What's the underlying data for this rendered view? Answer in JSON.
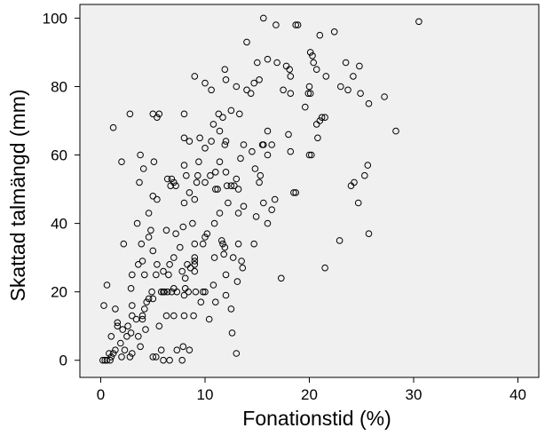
{
  "chart_data": {
    "type": "scatter",
    "title": "",
    "xlabel": "Fonationstid (%)",
    "ylabel": "Skattad talmängd (mm)",
    "xlim": [
      -2,
      42
    ],
    "ylim": [
      -5,
      104
    ],
    "xticks": [
      "0",
      "10",
      "20",
      "30",
      "40"
    ],
    "yticks": [
      "0",
      "20",
      "40",
      "60",
      "80",
      "100"
    ],
    "grid": false,
    "legend": "none",
    "plot_background": "#f0f0f0",
    "marker_color": "#000000",
    "marker": "hollow-circle",
    "series": [
      {
        "points": [
          [
            0.2,
            0
          ],
          [
            0.4,
            0
          ],
          [
            0.6,
            0
          ],
          [
            0.9,
            0
          ],
          [
            1.0,
            1
          ],
          [
            1.2,
            2
          ],
          [
            0.8,
            2
          ],
          [
            1.4,
            3
          ],
          [
            1.0,
            7
          ],
          [
            0.6,
            22
          ],
          [
            0.3,
            16
          ],
          [
            1.4,
            15
          ],
          [
            1.9,
            5
          ],
          [
            2.0,
            1
          ],
          [
            2.3,
            3
          ],
          [
            1.6,
            11
          ],
          [
            1.6,
            10
          ],
          [
            2.1,
            9
          ],
          [
            2.5,
            7
          ],
          [
            2.9,
            8
          ],
          [
            2.8,
            1
          ],
          [
            3.0,
            2
          ],
          [
            2.6,
            10
          ],
          [
            3.0,
            13
          ],
          [
            2.9,
            21
          ],
          [
            3.0,
            25
          ],
          [
            3.6,
            28
          ],
          [
            3.5,
            40
          ],
          [
            2.2,
            34
          ],
          [
            3.9,
            34
          ],
          [
            4.0,
            29
          ],
          [
            4.2,
            25
          ],
          [
            3.8,
            4
          ],
          [
            3.6,
            7
          ],
          [
            4.0,
            13
          ],
          [
            4.0,
            12
          ],
          [
            4.2,
            15
          ],
          [
            4.6,
            18
          ],
          [
            4.9,
            20
          ],
          [
            5.0,
            18
          ],
          [
            4.6,
            36
          ],
          [
            4.6,
            43
          ],
          [
            3.7,
            52
          ],
          [
            3.8,
            60
          ],
          [
            4.1,
            56
          ],
          [
            5.0,
            48
          ],
          [
            5.4,
            47
          ],
          [
            2.0,
            58
          ],
          [
            1.2,
            68
          ],
          [
            2.8,
            72
          ],
          [
            5.0,
            72
          ],
          [
            5.6,
            72
          ],
          [
            5.4,
            71
          ],
          [
            5.1,
            58
          ],
          [
            5.0,
            32
          ],
          [
            5.3,
            25
          ],
          [
            5.6,
            10
          ],
          [
            5.8,
            20
          ],
          [
            5.3,
            1
          ],
          [
            5.8,
            3
          ],
          [
            5.0,
            1
          ],
          [
            6.1,
            20
          ],
          [
            6.8,
            20
          ],
          [
            7.0,
            21
          ],
          [
            7.0,
            13
          ],
          [
            6.6,
            0
          ],
          [
            7.8,
            0
          ],
          [
            7.9,
            4
          ],
          [
            8.5,
            3
          ],
          [
            8.0,
            19
          ],
          [
            8.1,
            24
          ],
          [
            8.3,
            28
          ],
          [
            7.8,
            26
          ],
          [
            7.9,
            39
          ],
          [
            8.0,
            46
          ],
          [
            8.2,
            54
          ],
          [
            8.5,
            49
          ],
          [
            8.0,
            57
          ],
          [
            8.0,
            65
          ],
          [
            8.5,
            64
          ],
          [
            8.0,
            72
          ],
          [
            9.0,
            83
          ],
          [
            9.5,
            65
          ],
          [
            9.3,
            54
          ],
          [
            9.2,
            52
          ],
          [
            9.0,
            47
          ],
          [
            8.8,
            40
          ],
          [
            9.0,
            34
          ],
          [
            9.0,
            30
          ],
          [
            9.0,
            28
          ],
          [
            9.1,
            20
          ],
          [
            9.8,
            20
          ],
          [
            9.8,
            34
          ],
          [
            10.5,
            54
          ],
          [
            10.6,
            64
          ],
          [
            10.8,
            69
          ],
          [
            10.0,
            81
          ],
          [
            10.6,
            79
          ],
          [
            11.3,
            72
          ],
          [
            11.7,
            71
          ],
          [
            11.4,
            67
          ],
          [
            12.0,
            64
          ],
          [
            12.0,
            82
          ],
          [
            11.9,
            85
          ],
          [
            12.5,
            73
          ],
          [
            13.0,
            80
          ],
          [
            13.3,
            72
          ],
          [
            14.0,
            79
          ],
          [
            14.0,
            93
          ],
          [
            14.4,
            78
          ],
          [
            14.7,
            81
          ],
          [
            15.0,
            87
          ],
          [
            15.2,
            82
          ],
          [
            15.6,
            100
          ],
          [
            16.0,
            88
          ],
          [
            16.8,
            98
          ],
          [
            16.9,
            87
          ],
          [
            17.5,
            79
          ],
          [
            18.2,
            83
          ],
          [
            17.8,
            86
          ],
          [
            18.1,
            85
          ],
          [
            18.7,
            98
          ],
          [
            18.9,
            98
          ],
          [
            20.1,
            90
          ],
          [
            21.0,
            95
          ],
          [
            22.4,
            96
          ],
          [
            20.3,
            89
          ],
          [
            20.4,
            87
          ],
          [
            20.7,
            85
          ],
          [
            20.0,
            80
          ],
          [
            20.1,
            78
          ],
          [
            21.6,
            83
          ],
          [
            23.0,
            80
          ],
          [
            23.5,
            87
          ],
          [
            23.7,
            79
          ],
          [
            24.2,
            83
          ],
          [
            24.8,
            86
          ],
          [
            24.9,
            78
          ],
          [
            25.7,
            75
          ],
          [
            27.2,
            77
          ],
          [
            28.3,
            67
          ],
          [
            30.5,
            99
          ],
          [
            25.6,
            57
          ],
          [
            25.3,
            54
          ],
          [
            24.0,
            51
          ],
          [
            24.3,
            52
          ],
          [
            24.7,
            46
          ],
          [
            22.9,
            35
          ],
          [
            25.7,
            37
          ],
          [
            21.5,
            27
          ],
          [
            21.2,
            71
          ],
          [
            21.0,
            70
          ],
          [
            21.5,
            71
          ],
          [
            20.7,
            69
          ],
          [
            20.8,
            65
          ],
          [
            20.0,
            60
          ],
          [
            20.2,
            60
          ],
          [
            19.6,
            74
          ],
          [
            19.9,
            78
          ],
          [
            18.2,
            78
          ],
          [
            18.0,
            66
          ],
          [
            18.2,
            61
          ],
          [
            18.5,
            49
          ],
          [
            18.7,
            49
          ],
          [
            17.3,
            24
          ],
          [
            16.7,
            47
          ],
          [
            16.4,
            44
          ],
          [
            16.0,
            40
          ],
          [
            15.6,
            46
          ],
          [
            15.3,
            54
          ],
          [
            15.5,
            63
          ],
          [
            15.6,
            63
          ],
          [
            15.2,
            52
          ],
          [
            14.9,
            42
          ],
          [
            14.7,
            34
          ],
          [
            13.2,
            43
          ],
          [
            13.7,
            45
          ],
          [
            13.2,
            50
          ],
          [
            13.0,
            53
          ],
          [
            13.4,
            59
          ],
          [
            13.7,
            63
          ],
          [
            14.5,
            61
          ],
          [
            14.8,
            56
          ],
          [
            16.0,
            60
          ],
          [
            16.0,
            67
          ],
          [
            16.4,
            63
          ],
          [
            12.0,
            25
          ],
          [
            11.8,
            31
          ],
          [
            11.7,
            34
          ],
          [
            11.9,
            33
          ],
          [
            12.7,
            30
          ],
          [
            13.2,
            34
          ],
          [
            13.5,
            29
          ],
          [
            13.6,
            27
          ],
          [
            13.1,
            23
          ],
          [
            12.0,
            19
          ],
          [
            12.5,
            15
          ],
          [
            12.6,
            8
          ],
          [
            13.0,
            2
          ],
          [
            11.0,
            17
          ],
          [
            10.8,
            22
          ],
          [
            10.4,
            12
          ],
          [
            10.0,
            20
          ],
          [
            9.6,
            17
          ],
          [
            9.0,
            26
          ],
          [
            10.9,
            40
          ],
          [
            11.2,
            50
          ],
          [
            11.4,
            43
          ],
          [
            11.6,
            35
          ],
          [
            12.2,
            46
          ],
          [
            12.8,
            51
          ],
          [
            12.5,
            51
          ],
          [
            12.1,
            51
          ],
          [
            11.0,
            50
          ],
          [
            10.0,
            36
          ],
          [
            10.2,
            37
          ],
          [
            10.9,
            30
          ],
          [
            8.1,
            21
          ],
          [
            8.4,
            20
          ],
          [
            8.6,
            27
          ],
          [
            9.0,
            29
          ],
          [
            6.0,
            20
          ],
          [
            6.4,
            20
          ],
          [
            6.5,
            25
          ],
          [
            7.0,
            30
          ],
          [
            7.6,
            33
          ],
          [
            7.3,
            20
          ],
          [
            7.2,
            37
          ],
          [
            6.7,
            51
          ],
          [
            6.4,
            53
          ],
          [
            6.8,
            53
          ],
          [
            7.0,
            52
          ],
          [
            7.2,
            51
          ],
          [
            9.4,
            58
          ],
          [
            10.0,
            62
          ],
          [
            11.9,
            63
          ],
          [
            11.4,
            58
          ],
          [
            12.0,
            55
          ],
          [
            11.0,
            55
          ],
          [
            10.0,
            52
          ],
          [
            8.0,
            13
          ],
          [
            6.6,
            28
          ],
          [
            6.3,
            38
          ],
          [
            4.8,
            38
          ],
          [
            4.4,
            17
          ],
          [
            3.0,
            16
          ],
          [
            3.4,
            12
          ],
          [
            4.3,
            9
          ],
          [
            6.0,
            26
          ],
          [
            5.4,
            28
          ],
          [
            6.3,
            13
          ],
          [
            7.3,
            3
          ],
          [
            6.0,
            0
          ],
          [
            8.9,
            13
          ]
        ]
      }
    ]
  }
}
